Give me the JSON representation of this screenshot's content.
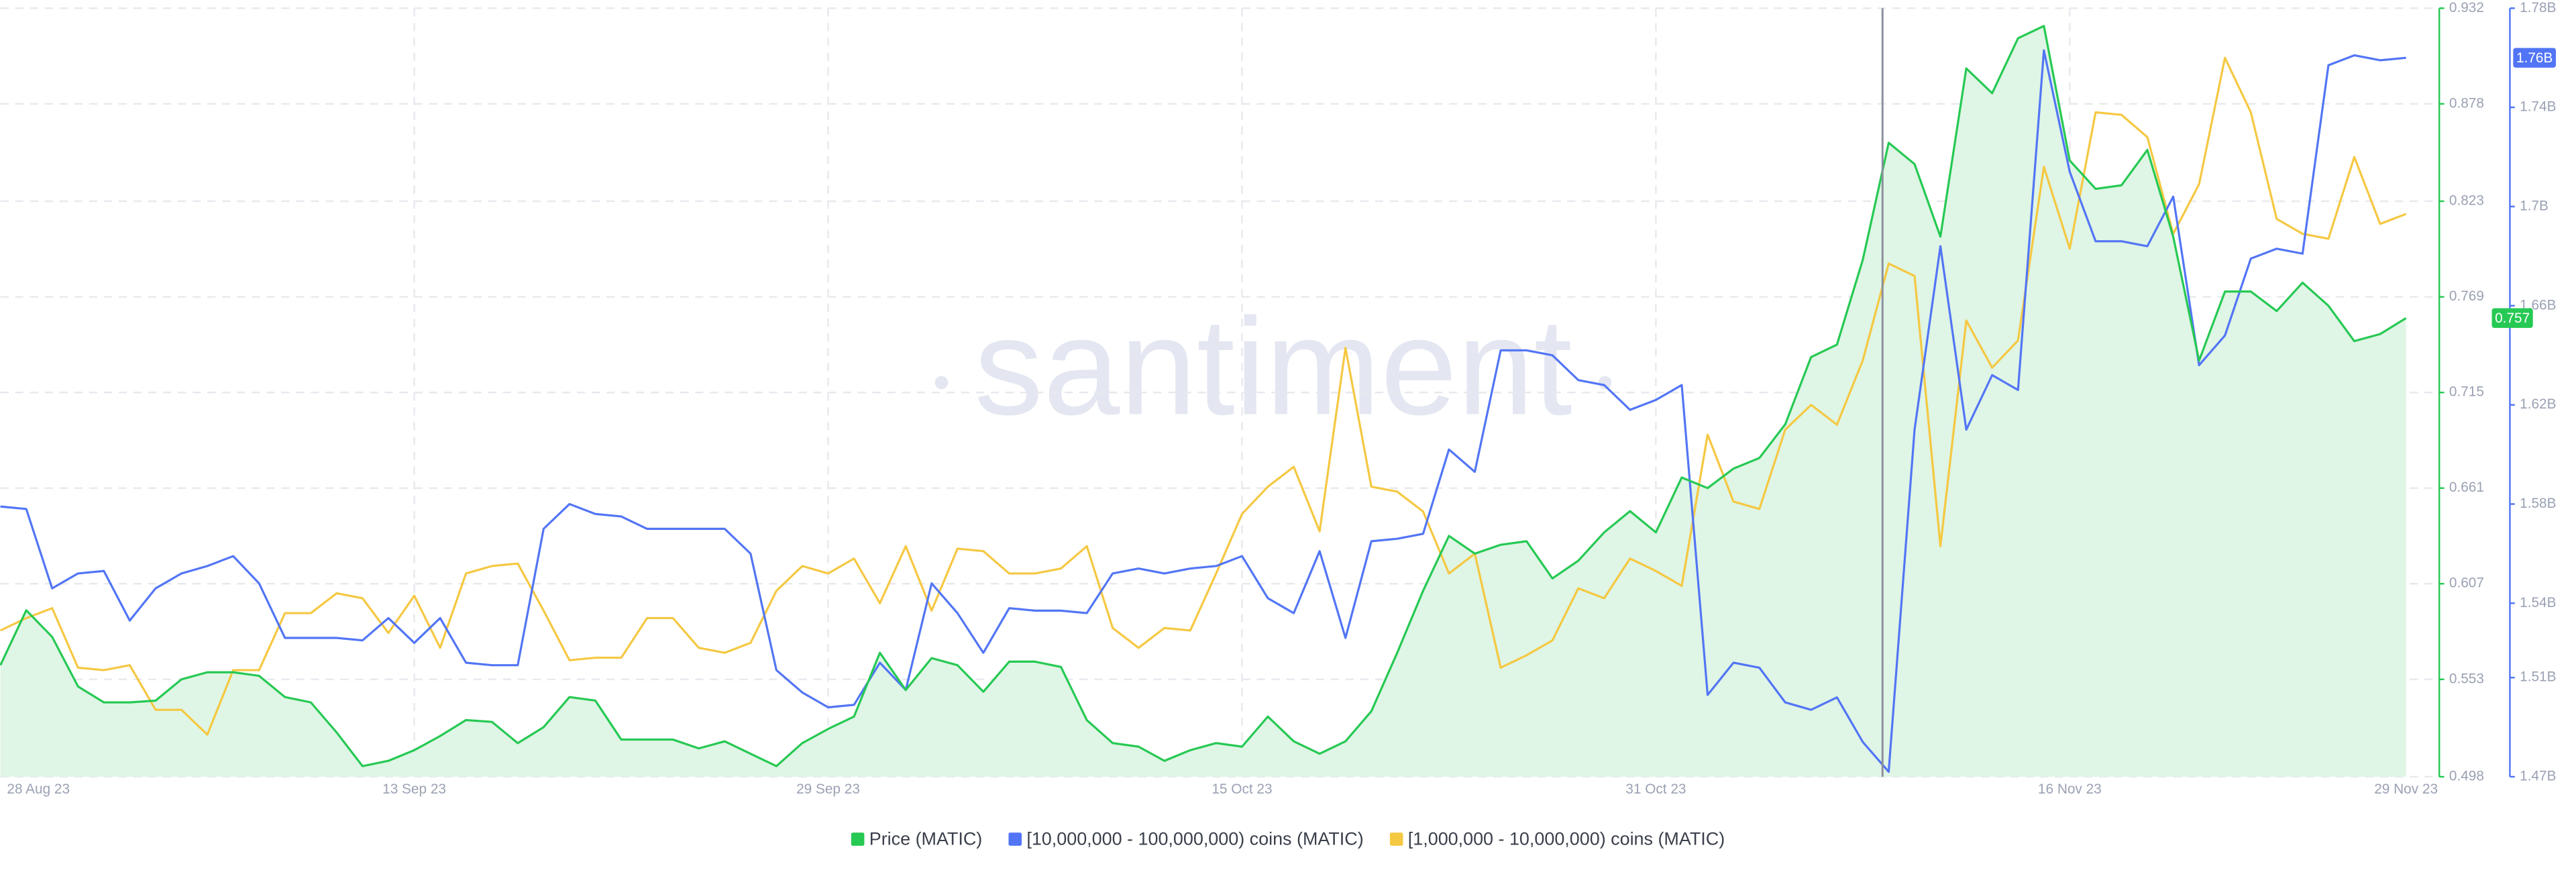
{
  "chart_data": {
    "type": "line",
    "watermark": "santiment",
    "categories": [
      "28 Aug 23",
      null,
      null,
      null,
      null,
      null,
      null,
      null,
      null,
      null,
      null,
      null,
      null,
      null,
      null,
      null,
      "13 Sep 23",
      null,
      null,
      null,
      null,
      null,
      null,
      null,
      null,
      null,
      null,
      null,
      null,
      null,
      null,
      null,
      "29 Sep 23",
      null,
      null,
      null,
      null,
      null,
      null,
      null,
      null,
      null,
      null,
      null,
      null,
      null,
      null,
      null,
      "15 Oct 23",
      null,
      null,
      null,
      null,
      null,
      null,
      null,
      null,
      null,
      null,
      null,
      null,
      null,
      null,
      null,
      "31 Oct 23",
      null,
      null,
      null,
      null,
      null,
      null,
      null,
      null,
      null,
      null,
      null,
      null,
      null,
      null,
      null,
      "16 Nov 23",
      null,
      null,
      null,
      null,
      null,
      null,
      null,
      null,
      null,
      null,
      null,
      null,
      "29 Nov 23"
    ],
    "series": [
      {
        "name": "Price (MATIC)",
        "color": "#26c953",
        "area": true,
        "values": [
          0.561,
          0.592,
          0.577,
          0.549,
          0.54,
          0.54,
          0.541,
          0.553,
          0.557,
          0.557,
          0.555,
          0.543,
          0.54,
          0.523,
          0.504,
          0.507,
          0.513,
          0.521,
          0.53,
          0.529,
          0.517,
          0.526,
          0.543,
          0.541,
          0.519,
          0.519,
          0.519,
          0.514,
          0.518,
          0.511,
          0.504,
          0.517,
          0.525,
          0.532,
          0.568,
          0.547,
          0.565,
          0.561,
          0.546,
          0.563,
          0.563,
          0.56,
          0.53,
          0.517,
          0.515,
          0.507,
          0.513,
          0.517,
          0.515,
          0.532,
          0.518,
          0.511,
          0.518,
          0.535,
          0.568,
          0.603,
          0.634,
          0.624,
          0.629,
          0.631,
          0.61,
          0.62,
          0.636,
          0.648,
          0.636,
          0.667,
          0.661,
          0.672,
          0.678,
          0.697,
          0.735,
          0.742,
          0.79,
          0.856,
          0.844,
          0.803,
          0.898,
          0.884,
          0.915,
          0.922,
          0.846,
          0.83,
          0.832,
          0.852,
          0.803,
          0.733,
          0.772,
          0.772,
          0.761,
          0.777,
          0.764,
          0.744,
          0.748,
          0.757
        ]
      },
      {
        "name": "[10,000,000 - 100,000,000) coins (MATIC)",
        "color": "#5275f5",
        "axis": "y2",
        "values": [
          1579000000,
          1578000000,
          1546000000,
          1552000000,
          1553000000,
          1533000000,
          1546000000,
          1552000000,
          1555000000,
          1559000000,
          1548000000,
          1526000000,
          1526000000,
          1526000000,
          1525000000,
          1534000000,
          1524000000,
          1534000000,
          1516000000,
          1515000000,
          1515000000,
          1570000000,
          1580000000,
          1576000000,
          1575000000,
          1570000000,
          1570000000,
          1570000000,
          1570000000,
          1560000000,
          1513000000,
          1504000000,
          1498000000,
          1499000000,
          1516000000,
          1505000000,
          1548000000,
          1536000000,
          1520000000,
          1538000000,
          1537000000,
          1537000000,
          1536000000,
          1552000000,
          1554000000,
          1552000000,
          1554000000,
          1555000000,
          1559000000,
          1542000000,
          1536000000,
          1561000000,
          1526000000,
          1565000000,
          1566000000,
          1568000000,
          1602000000,
          1593000000,
          1642000000,
          1642000000,
          1640000000,
          1630000000,
          1628000000,
          1618000000,
          1622000000,
          1628000000,
          1503000000,
          1516000000,
          1514000000,
          1500000000,
          1497000000,
          1502000000,
          1484000000,
          1472000000,
          1610000000,
          1684000000,
          1610000000,
          1632000000,
          1626000000,
          1763000000,
          1714000000,
          1686000000,
          1686000000,
          1684000000,
          1704000000,
          1636000000,
          1648000000,
          1679000000,
          1683000000,
          1681000000,
          1757000000,
          1761000000,
          1759000000,
          1760000000
        ],
        "value_labels": [
          null,
          null,
          null,
          null,
          null,
          null,
          null,
          null,
          null,
          null,
          null,
          null,
          null,
          null,
          null,
          null,
          null,
          null,
          null,
          null,
          null,
          null,
          null,
          null,
          null,
          null,
          null,
          null,
          null,
          null,
          null,
          null,
          null,
          null,
          null,
          null,
          null,
          null,
          null,
          null,
          null,
          null,
          null,
          null,
          null,
          null,
          null,
          null,
          null,
          null,
          null,
          null,
          null,
          null,
          null,
          null,
          null,
          null,
          null,
          null,
          null,
          null,
          null,
          null,
          null,
          null,
          null,
          null,
          null,
          null,
          null,
          null,
          null,
          null,
          null,
          null,
          null,
          null,
          null,
          null,
          null,
          null,
          null,
          null,
          null,
          null,
          null,
          null,
          null,
          null,
          null,
          null,
          null,
          "1.76B"
        ]
      },
      {
        "name": "[1,000,000 - 10,000,000) coins (MATIC)",
        "color": "#f5c842",
        "axis": "y2",
        "values": [
          1529000000,
          1534000000,
          1538000000,
          1514000000,
          1513000000,
          1515000000,
          1497000000,
          1497000000,
          1487000000,
          1513000000,
          1513000000,
          1536000000,
          1536000000,
          1544000000,
          1542000000,
          1528000000,
          1543000000,
          1522000000,
          1552000000,
          1555000000,
          1556000000,
          1537000000,
          1517000000,
          1518000000,
          1518000000,
          1534000000,
          1534000000,
          1522000000,
          1520000000,
          1524000000,
          1545000000,
          1555000000,
          1552000000,
          1558000000,
          1540000000,
          1563000000,
          1537000000,
          1562000000,
          1561000000,
          1552000000,
          1552000000,
          1554000000,
          1563000000,
          1530000000,
          1522000000,
          1530000000,
          1529000000,
          1552000000,
          1576000000,
          1587000000,
          1595000000,
          1569000000,
          1643000000,
          1587000000,
          1585000000,
          1577000000,
          1552000000,
          1560000000,
          1514000000,
          1519000000,
          1525000000,
          1546000000,
          1542000000,
          1558000000,
          1553000000,
          1547000000,
          1608000000,
          1581000000,
          1578000000,
          1610000000,
          1620000000,
          1612000000,
          1638000000,
          1677000000,
          1672000000,
          1563000000,
          1654000000,
          1635000000,
          1646000000,
          1716000000,
          1683000000,
          1738000000,
          1737000000,
          1728000000,
          1689000000,
          1709000000,
          1760000000,
          1738000000,
          1695000000,
          1689000000,
          1687000000,
          1720000000,
          1693000000,
          1697000000
        ]
      }
    ],
    "ylim": [
      0.498,
      0.932
    ],
    "yticks": [
      0.498,
      0.553,
      0.607,
      0.661,
      0.715,
      0.769,
      0.823,
      0.878,
      0.932
    ],
    "y2lim": [
      1470000000,
      1780000000
    ],
    "y2ticks": [
      {
        "value": 1470000000,
        "label": "1.47B"
      },
      {
        "value": 1510000000,
        "label": "1.51B"
      },
      {
        "value": 1540000000,
        "label": "1.54B"
      },
      {
        "value": 1580000000,
        "label": "1.58B"
      },
      {
        "value": 1620000000,
        "label": "1.62B"
      },
      {
        "value": 1660000000,
        "label": "1.66B"
      },
      {
        "value": 1700000000,
        "label": "1.7B"
      },
      {
        "value": 1740000000,
        "label": "1.74B"
      },
      {
        "value": 1780000000,
        "label": "1.78B"
      }
    ],
    "grid": true,
    "legend": "bottom"
  }
}
